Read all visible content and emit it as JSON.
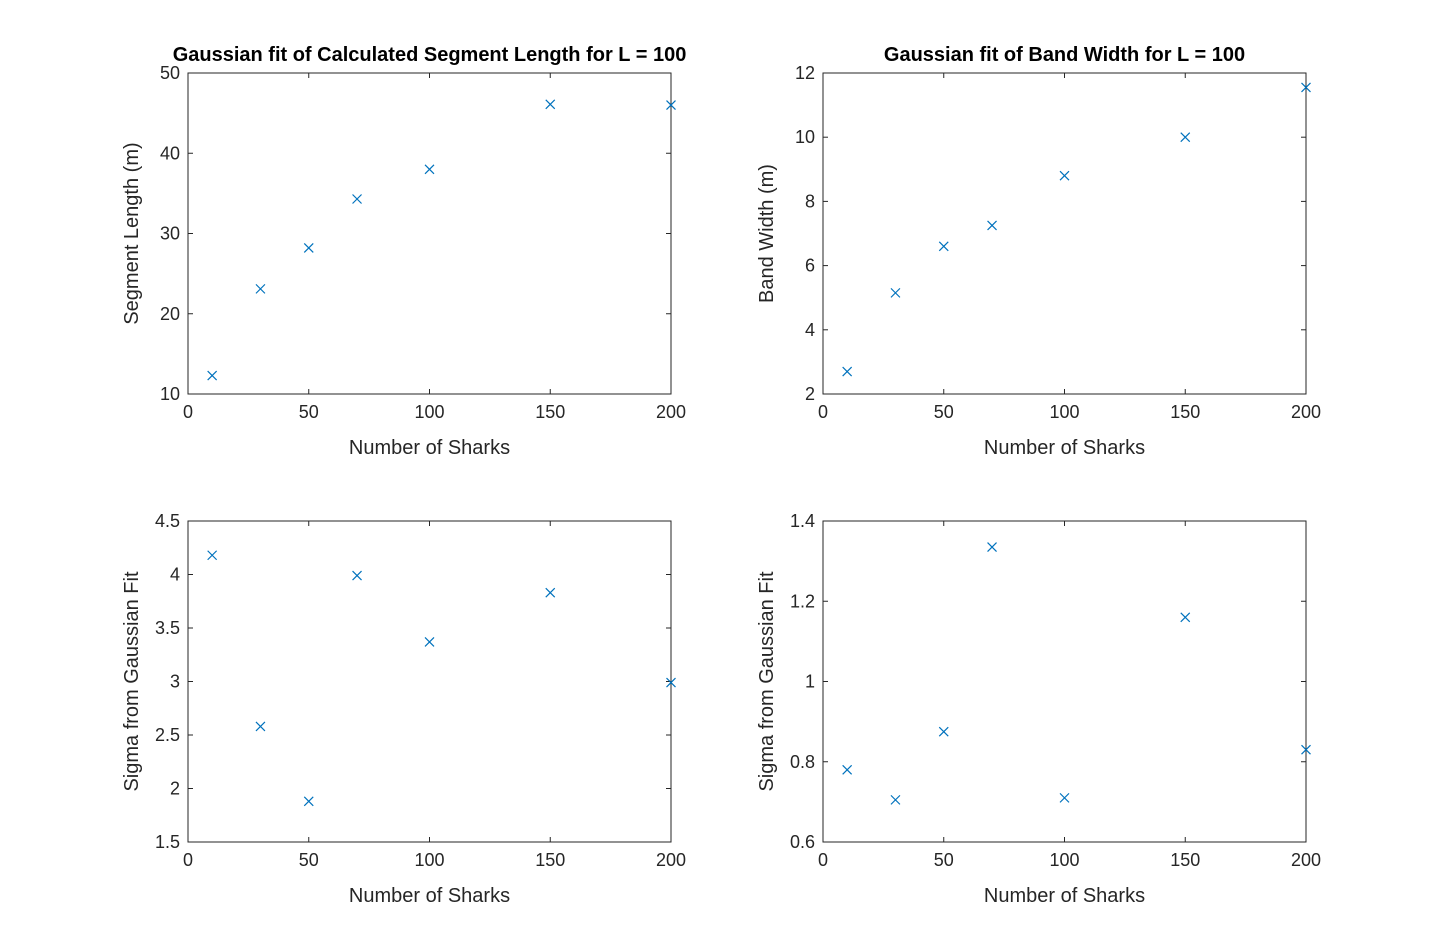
{
  "colors": {
    "marker": "#0072BD",
    "axis": "#262626",
    "background": "#ffffff"
  },
  "chart_data": [
    {
      "type": "scatter",
      "marker": "x",
      "title": "Gaussian fit of Calculated Segment Length for L = 100",
      "xlabel": "Number of Sharks",
      "ylabel": "Segment Length (m)",
      "xlim": [
        0,
        200
      ],
      "ylim": [
        10,
        50
      ],
      "xticks": [
        0,
        50,
        100,
        150,
        200
      ],
      "yticks": [
        10,
        20,
        30,
        40,
        50
      ],
      "grid": false,
      "x": [
        10,
        30,
        50,
        70,
        100,
        150,
        200
      ],
      "y": [
        12.3,
        23.1,
        28.2,
        34.3,
        38.0,
        46.1,
        46.0
      ]
    },
    {
      "type": "scatter",
      "marker": "x",
      "title": "Gaussian fit of Band Width for L = 100",
      "xlabel": "Number of Sharks",
      "ylabel": "Band Width (m)",
      "xlim": [
        0,
        200
      ],
      "ylim": [
        2,
        12
      ],
      "xticks": [
        0,
        50,
        100,
        150,
        200
      ],
      "yticks": [
        2,
        4,
        6,
        8,
        10,
        12
      ],
      "grid": false,
      "x": [
        10,
        30,
        50,
        70,
        100,
        150,
        200
      ],
      "y": [
        2.7,
        5.15,
        6.6,
        7.25,
        8.8,
        10.0,
        11.55
      ]
    },
    {
      "type": "scatter",
      "marker": "x",
      "title": "",
      "xlabel": "Number of Sharks",
      "ylabel": "Sigma from Gaussian Fit",
      "xlim": [
        0,
        200
      ],
      "ylim": [
        1.5,
        4.5
      ],
      "xticks": [
        0,
        50,
        100,
        150,
        200
      ],
      "yticks": [
        1.5,
        2,
        2.5,
        3,
        3.5,
        4,
        4.5
      ],
      "ytick_labels": [
        "1.5",
        "2",
        "2.5",
        "3",
        "3.5",
        "4",
        "4.5"
      ],
      "grid": false,
      "x": [
        10,
        30,
        50,
        70,
        100,
        150,
        200
      ],
      "y": [
        4.18,
        2.58,
        1.88,
        3.99,
        3.37,
        3.83,
        2.99
      ]
    },
    {
      "type": "scatter",
      "marker": "x",
      "title": "",
      "xlabel": "Number of Sharks",
      "ylabel": "Sigma from Gaussian Fit",
      "xlim": [
        0,
        200
      ],
      "ylim": [
        0.6,
        1.4
      ],
      "xticks": [
        0,
        50,
        100,
        150,
        200
      ],
      "yticks": [
        0.6,
        0.8,
        1.0,
        1.2,
        1.4
      ],
      "ytick_labels": [
        "0.6",
        "0.8",
        "1",
        "1.2",
        "1.4"
      ],
      "grid": false,
      "x": [
        10,
        30,
        50,
        70,
        100,
        150,
        200
      ],
      "y": [
        0.78,
        0.705,
        0.875,
        1.335,
        0.71,
        1.16,
        0.83
      ]
    }
  ]
}
